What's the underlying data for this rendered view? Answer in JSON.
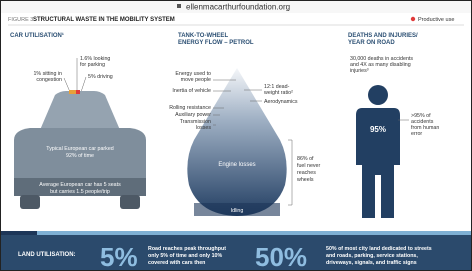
{
  "browser": {
    "url": "ellenmacarthurfoundation.org"
  },
  "header": {
    "figure": "FIGURE 3",
    "title": "STRUCTURAL WASTE IN THE MOBILITY SYSTEM",
    "legend": "Productive use"
  },
  "panels": [
    {
      "heading": [
        "CAR UTILISATION¹"
      ],
      "labels": {
        "parking": [
          "1.6% looking",
          "for parking"
        ],
        "congestion": [
          "1% sitting in",
          "congestion"
        ],
        "driving": [
          "5% driving"
        ],
        "parked": [
          "Typical European car parked",
          "92% of time"
        ],
        "seats": [
          "Average European car has 5 seats",
          "but carries 1.5 people/trip"
        ]
      }
    },
    {
      "heading": [
        "TANK-TO-WHEEL",
        "ENERGY FLOW – PETROL"
      ],
      "labels": {
        "move": [
          "Energy used to",
          "move people"
        ],
        "inertia": [
          "Inertia of vehicle"
        ],
        "rolling": [
          "Rolling resistance"
        ],
        "auxiliary": [
          "Auxiliary power"
        ],
        "transmission": [
          "Transmission",
          "losses"
        ],
        "deadweight": [
          "12:1 dead-",
          "weight ratio²"
        ],
        "aero": [
          "Aerodynamics"
        ],
        "engine": [
          "Engine losses"
        ],
        "fuel": [
          "86% of",
          "fuel never",
          "reaches",
          "wheels"
        ],
        "idling": [
          "Idling"
        ]
      }
    },
    {
      "heading": [
        "DEATHS AND INJURIES/",
        "YEAR ON ROAD"
      ],
      "labels": {
        "deaths": [
          "30,000 deaths in accidents",
          "and 4X as many disabling",
          "injuries³"
        ],
        "error": [
          ">95% of",
          "accidents",
          "from human",
          "error"
        ],
        "share": [
          "95%"
        ]
      }
    }
  ],
  "footer": {
    "label": "LAND UTILISATION:",
    "items": [
      {
        "big": "5%",
        "text": [
          "Road reaches peak throughput",
          "only 5% of time and only 10%",
          "covered with cars then"
        ]
      },
      {
        "big": "50%",
        "text": [
          "50% of most city land dedicated to streets",
          "and roads, parking, service stations,",
          "driveways, signals, and traffic signs"
        ]
      }
    ]
  }
}
